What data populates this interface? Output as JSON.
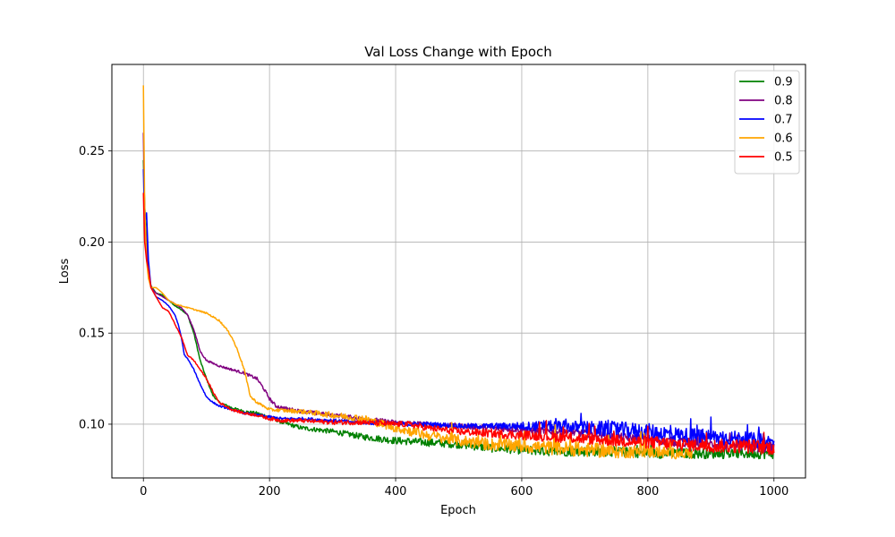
{
  "chart_data": {
    "type": "line",
    "title": "Val Loss Change with Epoch",
    "xlabel": "Epoch",
    "ylabel": "Loss",
    "xlim": [
      -50,
      1050
    ],
    "ylim": [
      0.0705,
      0.2975
    ],
    "xticks": [
      "0",
      "200",
      "400",
      "600",
      "800",
      "1000"
    ],
    "yticks": [
      "0.10",
      "0.15",
      "0.20",
      "0.25"
    ],
    "grid": true,
    "legend_position": "top-right",
    "series": [
      {
        "name": "0.9",
        "color": "#008000",
        "points": [
          [
            0,
            0.245
          ],
          [
            2,
            0.22
          ],
          [
            5,
            0.2
          ],
          [
            8,
            0.183
          ],
          [
            12,
            0.176
          ],
          [
            20,
            0.172
          ],
          [
            30,
            0.171
          ],
          [
            40,
            0.168
          ],
          [
            50,
            0.165
          ],
          [
            60,
            0.163
          ],
          [
            70,
            0.16
          ],
          [
            80,
            0.15
          ],
          [
            90,
            0.135
          ],
          [
            100,
            0.125
          ],
          [
            110,
            0.116
          ],
          [
            120,
            0.112
          ],
          [
            140,
            0.109
          ],
          [
            160,
            0.107
          ],
          [
            180,
            0.106
          ],
          [
            200,
            0.104
          ],
          [
            220,
            0.101
          ],
          [
            250,
            0.098
          ],
          [
            300,
            0.096
          ],
          [
            350,
            0.093
          ],
          [
            400,
            0.091
          ],
          [
            450,
            0.09
          ],
          [
            500,
            0.089
          ],
          [
            550,
            0.087
          ],
          [
            600,
            0.086
          ],
          [
            650,
            0.085
          ],
          [
            700,
            0.085
          ],
          [
            750,
            0.085
          ],
          [
            800,
            0.084
          ],
          [
            850,
            0.084
          ],
          [
            900,
            0.084
          ],
          [
            950,
            0.084
          ],
          [
            1000,
            0.084
          ]
        ],
        "noise": [
          [
            0,
            0
          ],
          [
            220,
            0.001
          ],
          [
            400,
            0.002
          ],
          [
            600,
            0.0025
          ],
          [
            1000,
            0.003
          ]
        ]
      },
      {
        "name": "0.8",
        "color": "#800080",
        "points": [
          [
            0,
            0.26
          ],
          [
            2,
            0.215
          ],
          [
            5,
            0.2
          ],
          [
            8,
            0.185
          ],
          [
            12,
            0.175
          ],
          [
            20,
            0.172
          ],
          [
            30,
            0.17
          ],
          [
            40,
            0.168
          ],
          [
            50,
            0.166
          ],
          [
            60,
            0.164
          ],
          [
            70,
            0.16
          ],
          [
            80,
            0.152
          ],
          [
            90,
            0.14
          ],
          [
            100,
            0.135
          ],
          [
            120,
            0.132
          ],
          [
            140,
            0.13
          ],
          [
            160,
            0.128
          ],
          [
            180,
            0.125
          ],
          [
            190,
            0.12
          ],
          [
            200,
            0.114
          ],
          [
            210,
            0.11
          ],
          [
            220,
            0.109
          ],
          [
            250,
            0.107
          ],
          [
            300,
            0.105
          ],
          [
            350,
            0.103
          ],
          [
            400,
            0.101
          ],
          [
            450,
            0.1
          ],
          [
            500,
            0.099
          ],
          [
            550,
            0.098
          ],
          [
            600,
            0.097
          ],
          [
            650,
            0.096
          ],
          [
            700,
            0.095
          ],
          [
            750,
            0.093
          ],
          [
            800,
            0.092
          ],
          [
            850,
            0.09
          ],
          [
            900,
            0.089
          ],
          [
            950,
            0.088
          ],
          [
            1000,
            0.087
          ]
        ],
        "noise": [
          [
            0,
            0
          ],
          [
            220,
            0.001
          ],
          [
            400,
            0.0012
          ],
          [
            700,
            0.002
          ],
          [
            1000,
            0.003
          ]
        ]
      },
      {
        "name": "0.7",
        "color": "#0000ff",
        "points": [
          [
            0,
            0.24
          ],
          [
            2,
            0.21
          ],
          [
            5,
            0.216
          ],
          [
            8,
            0.19
          ],
          [
            12,
            0.175
          ],
          [
            20,
            0.17
          ],
          [
            30,
            0.168
          ],
          [
            40,
            0.165
          ],
          [
            50,
            0.16
          ],
          [
            55,
            0.155
          ],
          [
            60,
            0.148
          ],
          [
            65,
            0.138
          ],
          [
            70,
            0.136
          ],
          [
            80,
            0.13
          ],
          [
            90,
            0.122
          ],
          [
            100,
            0.115
          ],
          [
            110,
            0.112
          ],
          [
            120,
            0.11
          ],
          [
            140,
            0.108
          ],
          [
            160,
            0.106
          ],
          [
            180,
            0.105
          ],
          [
            200,
            0.104
          ],
          [
            220,
            0.103
          ],
          [
            250,
            0.103
          ],
          [
            300,
            0.102
          ],
          [
            350,
            0.101
          ],
          [
            400,
            0.1
          ],
          [
            450,
            0.1
          ],
          [
            500,
            0.099
          ],
          [
            550,
            0.099
          ],
          [
            600,
            0.099
          ],
          [
            650,
            0.099
          ],
          [
            700,
            0.098
          ],
          [
            750,
            0.097
          ],
          [
            800,
            0.096
          ],
          [
            850,
            0.094
          ],
          [
            900,
            0.093
          ],
          [
            950,
            0.092
          ],
          [
            1000,
            0.09
          ]
        ],
        "noise": [
          [
            0,
            0
          ],
          [
            220,
            0.0008
          ],
          [
            550,
            0.0015
          ],
          [
            650,
            0.003
          ],
          [
            750,
            0.0045
          ],
          [
            1000,
            0.004
          ]
        ]
      },
      {
        "name": "0.6",
        "color": "#ffa500",
        "points": [
          [
            0,
            0.286
          ],
          [
            2,
            0.22
          ],
          [
            5,
            0.19
          ],
          [
            8,
            0.18
          ],
          [
            12,
            0.175
          ],
          [
            20,
            0.175
          ],
          [
            30,
            0.172
          ],
          [
            40,
            0.168
          ],
          [
            50,
            0.166
          ],
          [
            80,
            0.163
          ],
          [
            100,
            0.161
          ],
          [
            120,
            0.157
          ],
          [
            130,
            0.153
          ],
          [
            140,
            0.148
          ],
          [
            150,
            0.14
          ],
          [
            160,
            0.13
          ],
          [
            165,
            0.122
          ],
          [
            170,
            0.115
          ],
          [
            180,
            0.112
          ],
          [
            190,
            0.11
          ],
          [
            200,
            0.108
          ],
          [
            250,
            0.107
          ],
          [
            300,
            0.105
          ],
          [
            350,
            0.103
          ],
          [
            400,
            0.098
          ],
          [
            450,
            0.094
          ],
          [
            500,
            0.091
          ],
          [
            550,
            0.089
          ],
          [
            600,
            0.088
          ],
          [
            650,
            0.087
          ],
          [
            700,
            0.086
          ],
          [
            750,
            0.085
          ],
          [
            800,
            0.085
          ],
          [
            850,
            0.084
          ],
          [
            870,
            0.084
          ]
        ],
        "noise": [
          [
            0,
            0
          ],
          [
            200,
            0.0008
          ],
          [
            400,
            0.0025
          ],
          [
            550,
            0.0035
          ],
          [
            700,
            0.004
          ],
          [
            870,
            0.003
          ]
        ]
      },
      {
        "name": "0.5",
        "color": "#ff0000",
        "points": [
          [
            0,
            0.227
          ],
          [
            2,
            0.2
          ],
          [
            5,
            0.19
          ],
          [
            8,
            0.185
          ],
          [
            12,
            0.175
          ],
          [
            20,
            0.17
          ],
          [
            30,
            0.164
          ],
          [
            40,
            0.162
          ],
          [
            50,
            0.155
          ],
          [
            60,
            0.148
          ],
          [
            70,
            0.138
          ],
          [
            80,
            0.135
          ],
          [
            90,
            0.13
          ],
          [
            100,
            0.125
          ],
          [
            110,
            0.118
          ],
          [
            120,
            0.112
          ],
          [
            140,
            0.108
          ],
          [
            160,
            0.106
          ],
          [
            180,
            0.105
          ],
          [
            200,
            0.103
          ],
          [
            220,
            0.102
          ],
          [
            250,
            0.102
          ],
          [
            300,
            0.101
          ],
          [
            350,
            0.101
          ],
          [
            400,
            0.1
          ],
          [
            420,
            0.1
          ],
          [
            450,
            0.098
          ],
          [
            500,
            0.096
          ],
          [
            550,
            0.095
          ],
          [
            600,
            0.094
          ],
          [
            650,
            0.093
          ],
          [
            700,
            0.092
          ],
          [
            750,
            0.091
          ],
          [
            800,
            0.09
          ],
          [
            850,
            0.089
          ],
          [
            900,
            0.088
          ],
          [
            950,
            0.088
          ],
          [
            1000,
            0.087
          ]
        ],
        "noise": [
          [
            0,
            0
          ],
          [
            220,
            0.001
          ],
          [
            400,
            0.0015
          ],
          [
            600,
            0.0025
          ],
          [
            800,
            0.0035
          ],
          [
            1000,
            0.004
          ]
        ]
      }
    ]
  }
}
